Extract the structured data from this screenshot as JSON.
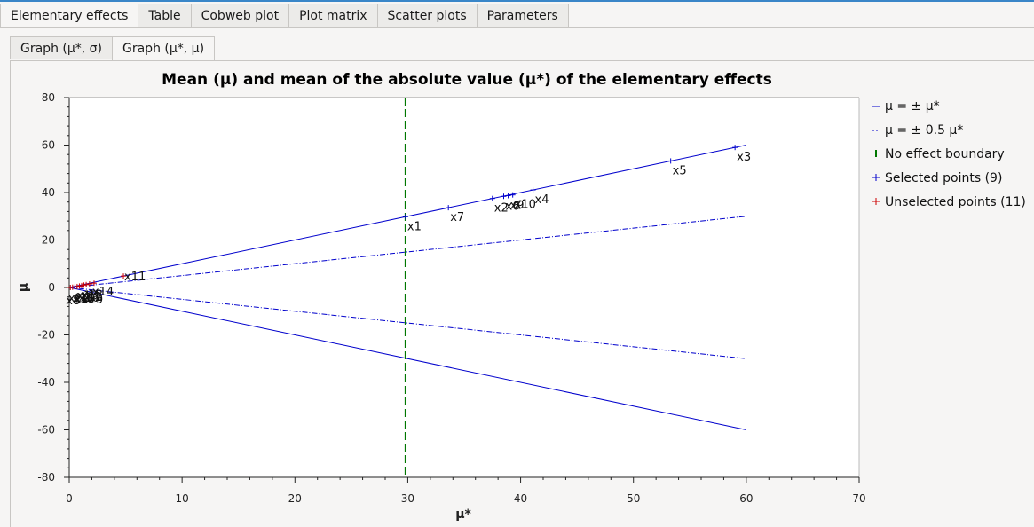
{
  "tabs": [
    "Elementary effects",
    "Table",
    "Cobweb plot",
    "Plot matrix",
    "Scatter plots",
    "Parameters"
  ],
  "subtabs": [
    "Graph (μ*, σ)",
    "Graph (μ*, μ)"
  ],
  "colors": {
    "selected": "#0000cc",
    "unselected": "#cc0000",
    "boundary": "#007700",
    "line": "#0000cc"
  },
  "chart_data": {
    "type": "scatter",
    "title": "Mean (μ) and mean of the absolute value (μ*) of the elementary effects",
    "xlabel": "μ*",
    "ylabel": "μ",
    "xlim": [
      0,
      70
    ],
    "ylim": [
      -80,
      80
    ],
    "xticks": [
      0,
      10,
      20,
      30,
      40,
      50,
      60,
      70
    ],
    "yticks": [
      -80,
      -60,
      -40,
      -20,
      0,
      20,
      40,
      60,
      80
    ],
    "boundary_x": 29.8,
    "legend_position": "right",
    "legend": [
      "μ = ± μ*",
      "μ = ± 0.5 μ*",
      "No effect boundary",
      "Selected points (9)",
      "Unselected points (11)"
    ],
    "selected_points": [
      {
        "label": "x3",
        "x": 59.0,
        "y": 59.0
      },
      {
        "label": "x5",
        "x": 53.3,
        "y": 53.3
      },
      {
        "label": "x4",
        "x": 41.1,
        "y": 41.1
      },
      {
        "label": "x10",
        "x": 39.3,
        "y": 39.0
      },
      {
        "label": "x9",
        "x": 38.9,
        "y": 38.7
      },
      {
        "label": "x6",
        "x": 38.5,
        "y": 38.4
      },
      {
        "label": "x2",
        "x": 37.5,
        "y": 37.5
      },
      {
        "label": "x7",
        "x": 33.6,
        "y": 33.6
      },
      {
        "label": "x1",
        "x": 29.8,
        "y": 29.8
      }
    ],
    "unselected_points": [
      {
        "label": "x11",
        "x": 4.8,
        "y": 4.8
      },
      {
        "label": "x19",
        "x": 2.2,
        "y": 1.8
      },
      {
        "label": "x14",
        "x": 1.8,
        "y": 1.5
      },
      {
        "label": "x12",
        "x": 1.5,
        "y": 1.2
      },
      {
        "label": "x18",
        "x": 1.3,
        "y": 1.0
      },
      {
        "label": "x16",
        "x": 1.1,
        "y": 0.8
      },
      {
        "label": "x13",
        "x": 0.9,
        "y": 0.6
      },
      {
        "label": "x15",
        "x": 0.7,
        "y": 0.4
      },
      {
        "label": "x17",
        "x": 0.5,
        "y": 0.2
      },
      {
        "label": "x20",
        "x": 0.3,
        "y": 0.1
      },
      {
        "label": "x8",
        "x": 0.1,
        "y": 0.0
      }
    ]
  }
}
